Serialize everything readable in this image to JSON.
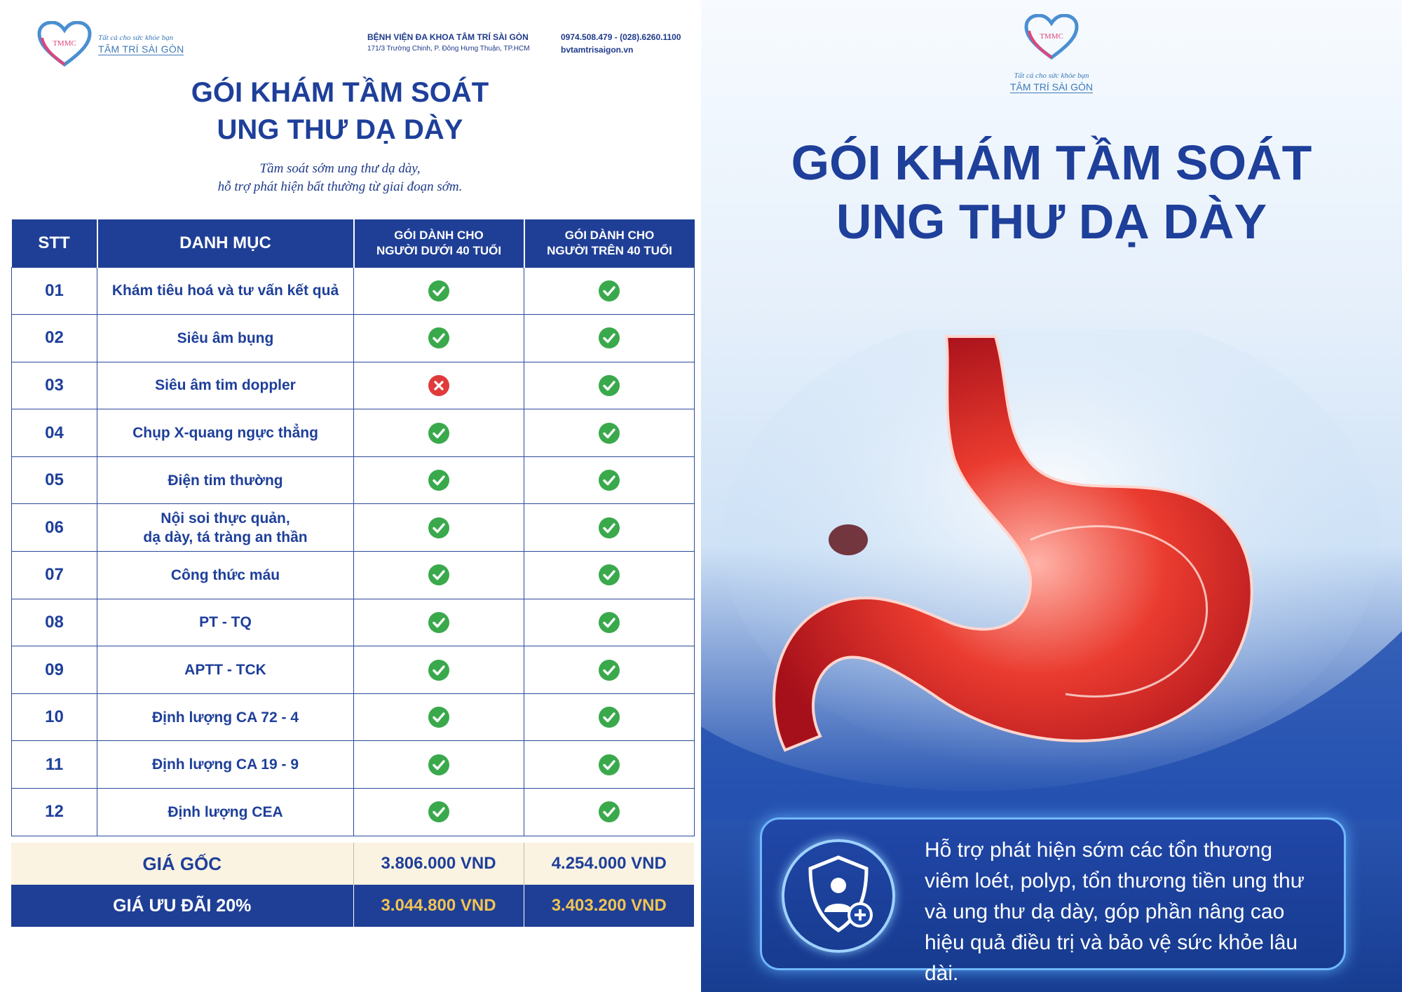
{
  "brand": {
    "logo_abbr": "TMMC",
    "tagline": "Tất cả cho sức khỏe bạn",
    "name": "TÂM TRÍ SÀI GÒN"
  },
  "hospital": {
    "name": "BỆNH VIỆN ĐA KHOA TÂM TRÍ SÀI GÒN",
    "address": "171/3 Trường Chinh, P. Đông Hưng Thuận, TP.HCM",
    "phone": "0974.508.479 - (028).6260.1100",
    "website": "bvtamtrisaigon.vn"
  },
  "left_page": {
    "title_line1": "GÓI KHÁM TẦM SOÁT",
    "title_line2": "UNG THƯ DẠ DÀY",
    "subtitle_line1": "Tầm soát sớm ung thư dạ dày,",
    "subtitle_line2": "hỗ trợ phát hiện bất thường từ giai đoạn sớm.",
    "table": {
      "headers": {
        "stt": "STT",
        "item": "DANH MỤC",
        "under40_line1": "GÓI DÀNH CHO",
        "under40_line2": "NGƯỜI DƯỚI 40 TUỔI",
        "over40_line1": "GÓI DÀNH CHO",
        "over40_line2": "NGƯỜI TRÊN 40 TUỔI"
      },
      "rows": [
        {
          "stt": "01",
          "name": "Khám tiêu hoá và tư vấn kết quả",
          "under40": true,
          "over40": true
        },
        {
          "stt": "02",
          "name": "Siêu âm bụng",
          "under40": true,
          "over40": true
        },
        {
          "stt": "03",
          "name": "Siêu âm tim doppler",
          "under40": false,
          "over40": true
        },
        {
          "stt": "04",
          "name": "Chụp X-quang ngực thẳng",
          "under40": true,
          "over40": true
        },
        {
          "stt": "05",
          "name": "Điện tim thường",
          "under40": true,
          "over40": true
        },
        {
          "stt": "06",
          "name": "Nội soi thực quản,",
          "name2": "dạ dày, tá tràng an thần",
          "under40": true,
          "over40": true
        },
        {
          "stt": "07",
          "name": "Công thức máu",
          "under40": true,
          "over40": true
        },
        {
          "stt": "08",
          "name": "PT - TQ",
          "under40": true,
          "over40": true
        },
        {
          "stt": "09",
          "name": "APTT - TCK",
          "under40": true,
          "over40": true
        },
        {
          "stt": "10",
          "name": "Định lượng CA 72 - 4",
          "under40": true,
          "over40": true
        },
        {
          "stt": "11",
          "name": "Định lượng CA 19 - 9",
          "under40": true,
          "over40": true
        },
        {
          "stt": "12",
          "name": "Định lượng CEA",
          "under40": true,
          "over40": true
        }
      ]
    },
    "pricing": {
      "original_label": "GIÁ GỐC",
      "original_under40": "3.806.000 VND",
      "original_over40": "4.254.000 VND",
      "discount_label": "GIÁ ƯU ĐÃI 20%",
      "discount_under40": "3.044.800 VND",
      "discount_over40": "3.403.200 VND"
    }
  },
  "right_page": {
    "title_line1": "GÓI KHÁM TẦM SOÁT",
    "title_line2": "UNG THƯ DẠ DÀY",
    "info_line1": "Hỗ trợ phát hiện sớm các tổn thương",
    "info_line2": "viêm loét, polyp, tổn thương tiền ung thư",
    "info_line3": "và ung thư dạ dày, góp phần nâng cao",
    "info_line4": "hiệu quả điều trị và bảo vệ sức khỏe lâu dài.",
    "illustration": "stomach-illustration",
    "icon": "shield-patient-icon"
  },
  "colors": {
    "primary_blue": "#1f3f96",
    "check_green": "#3aa94c",
    "cross_red": "#e03b3b",
    "price_gold": "#f2c451",
    "price_row_bg": "#fbf3e1"
  }
}
